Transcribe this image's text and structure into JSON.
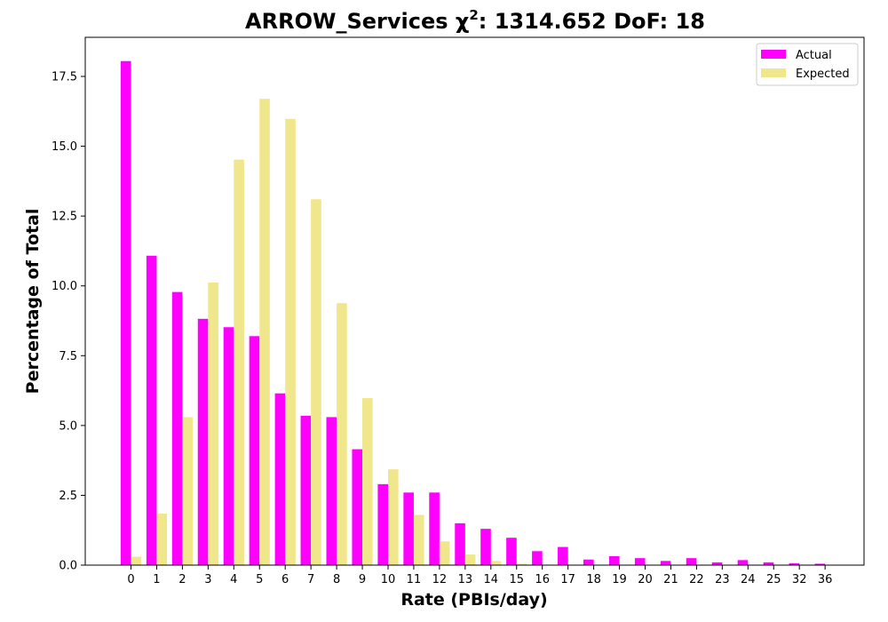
{
  "chart_data": {
    "type": "bar",
    "title_main": "ARROW_Services χ",
    "title_sup": "2",
    "title_rest": ": 1314.652 DoF: 18",
    "xlabel": "Rate (PBIs/day)",
    "ylabel": "Percentage of Total",
    "ylim": [
      0,
      18.9
    ],
    "yticks": [
      "0.0",
      "2.5",
      "5.0",
      "7.5",
      "10.0",
      "12.5",
      "15.0",
      "17.5"
    ],
    "legend_position": "top-right",
    "categories": [
      "0",
      "1",
      "2",
      "3",
      "4",
      "5",
      "6",
      "7",
      "8",
      "9",
      "10",
      "11",
      "12",
      "13",
      "14",
      "15",
      "16",
      "17",
      "18",
      "19",
      "20",
      "21",
      "22",
      "23",
      "24",
      "25",
      "32",
      "36"
    ],
    "series": [
      {
        "name": "Actual",
        "color": "#ff00ff",
        "values": [
          18.05,
          11.08,
          9.78,
          8.82,
          8.52,
          8.2,
          6.15,
          5.35,
          5.3,
          4.15,
          2.9,
          2.6,
          2.6,
          1.5,
          1.3,
          0.98,
          0.5,
          0.65,
          0.2,
          0.32,
          0.25,
          0.15,
          0.25,
          0.1,
          0.18,
          0.1,
          0.07,
          0.05
        ]
      },
      {
        "name": "Expected",
        "color": "#f0e68c",
        "values": [
          0.3,
          1.85,
          5.3,
          10.12,
          14.52,
          16.7,
          15.98,
          13.1,
          9.38,
          5.98,
          3.43,
          1.8,
          0.85,
          0.38,
          0.15,
          0.05,
          0.02,
          0.01,
          0,
          0,
          0,
          0,
          0,
          0,
          0,
          0,
          0,
          0
        ]
      }
    ]
  }
}
